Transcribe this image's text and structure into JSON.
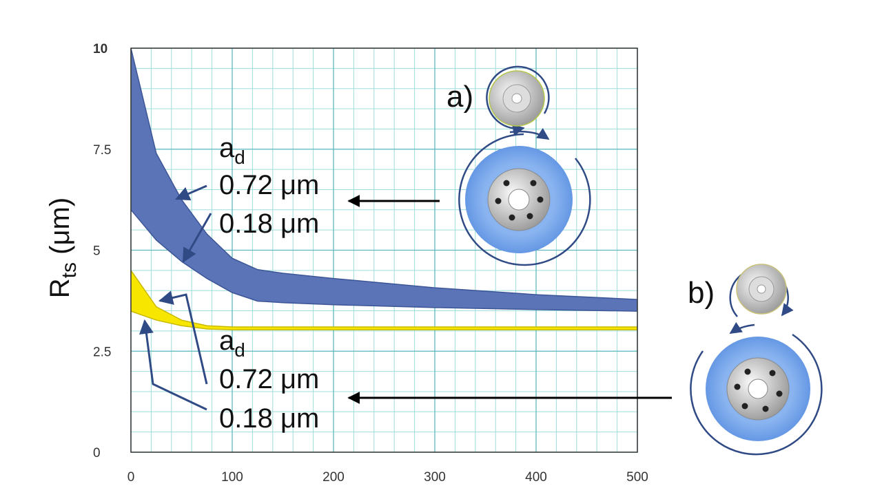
{
  "chart_data": {
    "type": "band",
    "x": [
      0,
      25,
      50,
      75,
      100,
      125,
      150,
      200,
      300,
      400,
      500
    ],
    "series": [
      {
        "color": "#5b74b8",
        "edge": "#3c5596",
        "upper": [
          10,
          7.4,
          6.25,
          5.4,
          4.8,
          4.52,
          4.43,
          4.3,
          4.07,
          3.9,
          3.78
        ],
        "lower": [
          6.0,
          5.25,
          4.72,
          4.3,
          3.95,
          3.74,
          3.7,
          3.65,
          3.58,
          3.53,
          3.49
        ]
      },
      {
        "color": "#f7e600",
        "edge": "#c9b800",
        "upper": [
          4.5,
          3.6,
          3.27,
          3.13,
          3.1,
          3.1,
          3.1,
          3.1,
          3.1,
          3.1,
          3.1
        ],
        "lower": [
          3.49,
          3.27,
          3.13,
          3.05,
          3.03,
          3.03,
          3.03,
          3.03,
          3.03,
          3.03,
          3.03
        ]
      }
    ],
    "xlim": [
      0,
      500
    ],
    "xticks": [
      0,
      100,
      200,
      300,
      400,
      500
    ],
    "ylim": [
      0,
      10
    ],
    "yticks": [
      0,
      2.5,
      5,
      7.5,
      10
    ],
    "grid": true,
    "minor_grid": {
      "x": 20,
      "y": 0.5
    },
    "ylabel": {
      "text": "R",
      "sub": "ts",
      "unit": " (μm)"
    },
    "annotations": {
      "upper": {
        "symbol": "a",
        "sub": "d",
        "coarse": "0.72 μm",
        "fine": "0.18 μm"
      },
      "lower": {
        "symbol": "a",
        "sub": "d",
        "coarse": "0.72 μm",
        "fine": "0.18 μm"
      },
      "label_a": "a)",
      "label_b": "b)"
    }
  }
}
